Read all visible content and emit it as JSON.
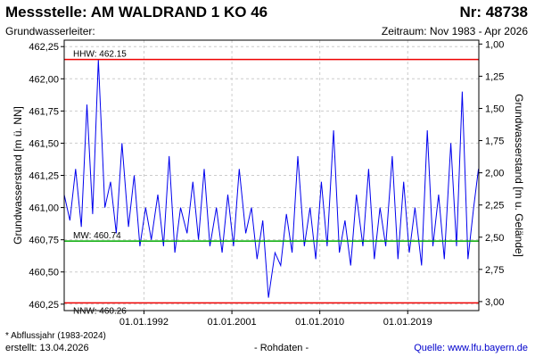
{
  "header": {
    "title": "Messstelle: AM WALDRAND 1 KO 46",
    "number": "Nr: 48738",
    "aquifer": "Grundwasserleiter:",
    "period": "Zeitraum: Nov 1983 - Apr 2026"
  },
  "footer": {
    "note": "* Abflussjahr (1983-2024)",
    "created": "erstellt:  13.04.2026",
    "raw": "- Rohdaten -",
    "source": "Quelle:  www.lfu.bayern.de"
  },
  "colors": {
    "series": "#0000ee",
    "hhw": "#ee0000",
    "nnw": "#ee0000",
    "mw": "#00aa00",
    "grid": "#cccccc"
  },
  "chart_data": {
    "type": "line",
    "title": "Messstelle: AM WALDRAND 1 KO 46",
    "ylabel": "Grundwasserstand [m ü. NN]",
    "y2label": "Grundwasserstand [m u. Gelände]",
    "ylim": [
      460.2,
      462.3
    ],
    "y2lim": [
      3.07,
      0.97
    ],
    "yticks": [
      "462,25",
      "462,00",
      "461,75",
      "461,50",
      "461,25",
      "461,00",
      "460,75",
      "460,50",
      "460,25"
    ],
    "y2ticks": [
      "1,00",
      "1,25",
      "1,50",
      "1,75",
      "2,00",
      "2,25",
      "2,50",
      "2,75",
      "3,00"
    ],
    "xlim": [
      "1983-11-01",
      "2026-04-13"
    ],
    "xticks": [
      "01.01.1992",
      "01.01.2001",
      "01.01.2010",
      "01.01.2019"
    ],
    "grid": true,
    "reference_lines": [
      {
        "label": "HHW: 462.15",
        "value": 462.15
      },
      {
        "label": "MW: 460.74",
        "value": 460.74
      },
      {
        "label": "NNW: 460.26",
        "value": 460.26
      }
    ],
    "series": [
      {
        "x": [
          "1983-11-01",
          "1984-06-01",
          "1985-01-01",
          "1985-08-01",
          "1986-03-01",
          "1986-10-01",
          "1987-05-01",
          "1988-01-01",
          "1988-08-01",
          "1989-03-01",
          "1989-10-01",
          "1990-06-01",
          "1991-01-01",
          "1991-08-01",
          "1992-03-01",
          "1992-10-01",
          "1993-06-01",
          "1994-01-01",
          "1994-08-01",
          "1995-03-01",
          "1995-10-01",
          "1996-06-01",
          "1997-01-01",
          "1997-08-01",
          "1998-03-01",
          "1998-10-01",
          "1999-06-01",
          "2000-01-01",
          "2000-08-01",
          "2001-03-01",
          "2001-10-01",
          "2002-06-01",
          "2003-01-01",
          "2003-08-01",
          "2004-03-01",
          "2004-10-01",
          "2005-06-01",
          "2006-01-01",
          "2006-08-01",
          "2007-03-01",
          "2007-10-01",
          "2008-06-01",
          "2009-01-01",
          "2009-08-01",
          "2010-03-01",
          "2010-10-01",
          "2011-06-01",
          "2012-01-01",
          "2012-08-01",
          "2013-03-01",
          "2013-10-01",
          "2014-06-01",
          "2015-01-01",
          "2015-08-01",
          "2016-03-01",
          "2016-10-01",
          "2017-06-01",
          "2018-01-01",
          "2018-08-01",
          "2019-03-01",
          "2019-10-01",
          "2020-06-01",
          "2021-01-01",
          "2021-08-01",
          "2022-03-01",
          "2022-10-01",
          "2023-06-01",
          "2024-01-01",
          "2024-08-01",
          "2025-03-01",
          "2025-10-01",
          "2026-04-01"
        ],
        "values": [
          461.1,
          460.9,
          461.3,
          460.85,
          461.8,
          460.95,
          462.15,
          461.0,
          461.2,
          460.8,
          461.5,
          460.85,
          461.25,
          460.7,
          461.0,
          460.75,
          461.1,
          460.7,
          461.4,
          460.65,
          461.0,
          460.8,
          461.2,
          460.75,
          461.3,
          460.7,
          461.0,
          460.65,
          461.1,
          460.7,
          461.3,
          460.8,
          461.0,
          460.6,
          460.9,
          460.3,
          460.65,
          460.55,
          460.95,
          460.65,
          461.4,
          460.7,
          461.0,
          460.6,
          461.2,
          460.7,
          461.6,
          460.65,
          460.9,
          460.55,
          461.1,
          460.7,
          461.3,
          460.6,
          461.0,
          460.7,
          461.4,
          460.6,
          461.2,
          460.65,
          461.0,
          460.55,
          461.6,
          460.7,
          461.1,
          460.6,
          461.5,
          460.7,
          461.9,
          460.6,
          461.0,
          461.3
        ]
      }
    ]
  }
}
